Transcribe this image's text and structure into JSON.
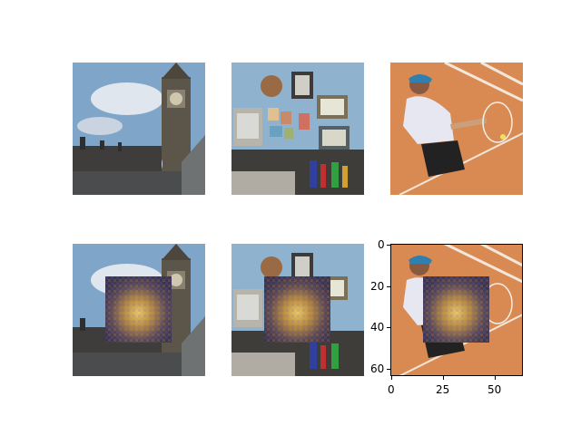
{
  "figure": {
    "rows": 2,
    "cols": 3,
    "images": [
      {
        "row": 0,
        "col": 0,
        "icon": "london-big-ben-photo"
      },
      {
        "row": 0,
        "col": 1,
        "icon": "office-wall-desk-photo"
      },
      {
        "row": 0,
        "col": 2,
        "icon": "tennis-player-photo"
      },
      {
        "row": 1,
        "col": 0,
        "icon": "london-big-ben-photo-occluded"
      },
      {
        "row": 1,
        "col": 1,
        "icon": "office-wall-desk-photo-occluded"
      },
      {
        "row": 1,
        "col": 2,
        "icon": "tennis-player-photo-occluded-with-axes"
      }
    ],
    "axes": {
      "x_ticks": [
        "0",
        "25",
        "50"
      ],
      "y_ticks": [
        "0",
        "20",
        "40",
        "60"
      ]
    }
  },
  "colors": {
    "sky": "#7fa6c9",
    "clay": "#d98a52",
    "wall": "#8fb3cf",
    "patch_core": "#c8a850"
  }
}
